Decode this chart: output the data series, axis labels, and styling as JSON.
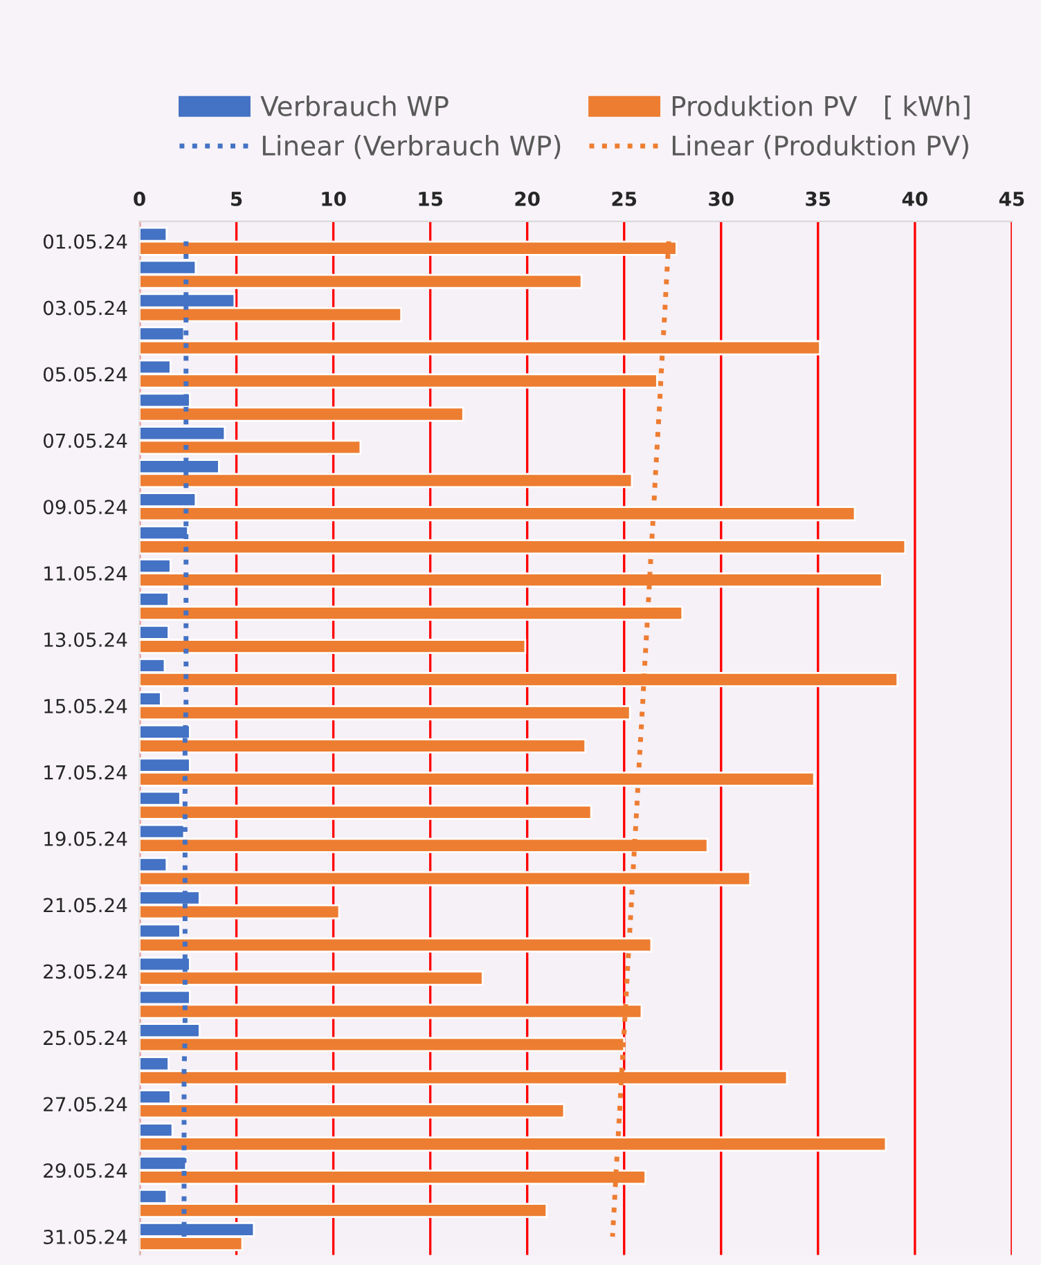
{
  "chart_data": {
    "type": "bar",
    "orientation": "horizontal",
    "categories": [
      "01.05.24",
      null,
      "03.05.24",
      null,
      "05.05.24",
      null,
      "07.05.24",
      null,
      "09.05.24",
      null,
      "11.05.24",
      null,
      "13.05.24",
      null,
      "15.05.24",
      null,
      "17.05.24",
      null,
      "19.05.24",
      null,
      "21.05.24",
      null,
      "23.05.24",
      null,
      "25.05.24",
      null,
      "27.05.24",
      null,
      "29.05.24",
      null,
      "31.05.24"
    ],
    "series": [
      {
        "name": "Verbrauch WP",
        "color": "#4472c4",
        "values": [
          1.4,
          2.9,
          4.9,
          2.3,
          1.6,
          2.6,
          4.4,
          4.1,
          2.9,
          2.5,
          1.6,
          1.5,
          1.5,
          1.3,
          1.1,
          2.6,
          2.6,
          2.1,
          2.3,
          1.4,
          3.1,
          2.1,
          2.6,
          2.6,
          3.1,
          1.5,
          1.6,
          1.7,
          2.4,
          1.4,
          5.9
        ]
      },
      {
        "name": "Produktion PV   [ kWh]",
        "color": "#ed7d31",
        "values": [
          27.7,
          22.8,
          13.5,
          35.1,
          26.7,
          16.7,
          11.4,
          25.4,
          36.9,
          39.5,
          38.3,
          28.0,
          19.9,
          39.1,
          25.3,
          23.0,
          34.8,
          23.3,
          29.3,
          31.5,
          10.3,
          26.4,
          17.7,
          25.9,
          25.0,
          33.4,
          21.9,
          38.5,
          26.1,
          21.0,
          5.3
        ]
      },
      {
        "name": "Linear (Verbrauch WP)",
        "type": "line",
        "line_style": "dotted",
        "color": "#4472c4",
        "values": [
          2.4,
          2.4,
          2.4,
          2.4,
          2.4,
          2.4,
          2.4,
          2.4,
          2.4,
          2.4,
          2.4,
          2.4,
          2.4,
          2.4,
          2.4,
          2.35,
          2.35,
          2.35,
          2.35,
          2.35,
          2.35,
          2.35,
          2.35,
          2.35,
          2.35,
          2.3,
          2.3,
          2.3,
          2.3,
          2.3,
          2.3
        ]
      },
      {
        "name": "Linear (Produktion PV)",
        "type": "line",
        "line_style": "dotted",
        "color": "#ed7d31",
        "values": [
          27.3,
          27.2,
          27.11,
          27.01,
          26.91,
          26.82,
          26.72,
          26.62,
          26.53,
          26.43,
          26.33,
          26.24,
          26.14,
          26.04,
          25.95,
          25.85,
          25.75,
          25.66,
          25.56,
          25.46,
          25.37,
          25.27,
          25.17,
          25.08,
          24.98,
          24.88,
          24.79,
          24.69,
          24.59,
          24.5,
          24.4
        ]
      }
    ],
    "xlim": [
      0,
      45
    ],
    "xticks": [
      0,
      5,
      10,
      15,
      20,
      25,
      30,
      35,
      40,
      45
    ],
    "grid": "x",
    "legend": "top"
  }
}
